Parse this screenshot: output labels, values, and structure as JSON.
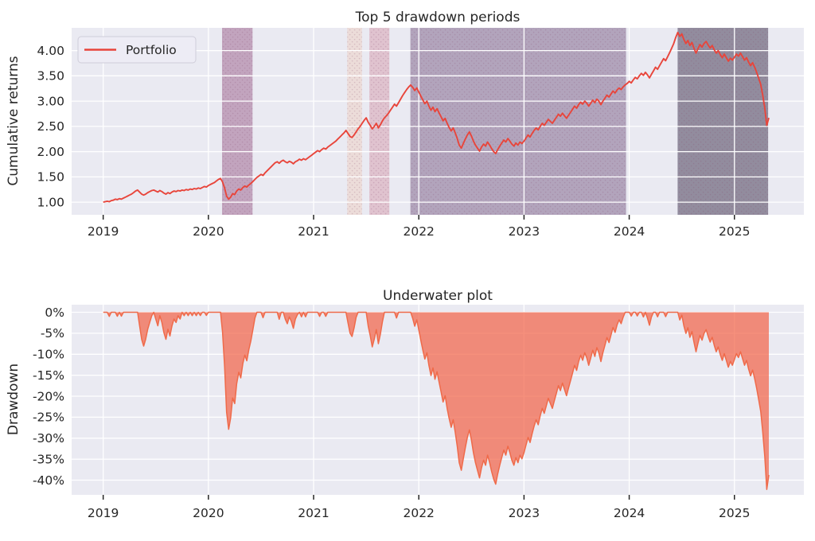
{
  "style": {
    "figure_bg": "#ffffff",
    "axes_bg": "#eaeaf2",
    "grid_color": "#ffffff",
    "text_color": "#262626",
    "tick_mark_color": "#262626",
    "legend_bg": "#edecf5",
    "legend_border": "#cfcdd9"
  },
  "chart_data": [
    {
      "type": "line",
      "title": "Top 5 drawdown periods",
      "ylabel": "Cumulative returns",
      "legend_position": "upper left",
      "grid": true,
      "xlim": [
        2018.7,
        2025.66
      ],
      "ylim": [
        0.75,
        4.45
      ],
      "x_ticks": [
        2019,
        2020,
        2021,
        2022,
        2023,
        2024,
        2025
      ],
      "x_tick_labels": [
        "2019",
        "2020",
        "2021",
        "2022",
        "2023",
        "2024",
        "2025"
      ],
      "y_ticks": [
        1.0,
        1.5,
        2.0,
        2.5,
        3.0,
        3.5,
        4.0
      ],
      "y_tick_labels": [
        "1.00",
        "1.50",
        "2.00",
        "2.50",
        "3.00",
        "3.50",
        "4.00"
      ],
      "series": [
        {
          "name": "Portfolio",
          "color": "#e8453b",
          "x_start": 2019.0,
          "x_step": 0.0192308,
          "values": [
            1.0,
            1.01,
            1.02,
            1.01,
            1.03,
            1.04,
            1.06,
            1.05,
            1.07,
            1.06,
            1.08,
            1.1,
            1.12,
            1.14,
            1.16,
            1.19,
            1.22,
            1.24,
            1.2,
            1.16,
            1.14,
            1.16,
            1.19,
            1.21,
            1.23,
            1.24,
            1.22,
            1.2,
            1.23,
            1.21,
            1.18,
            1.16,
            1.19,
            1.17,
            1.2,
            1.22,
            1.21,
            1.23,
            1.22,
            1.24,
            1.23,
            1.25,
            1.24,
            1.26,
            1.25,
            1.27,
            1.26,
            1.28,
            1.27,
            1.29,
            1.31,
            1.3,
            1.33,
            1.35,
            1.37,
            1.39,
            1.42,
            1.45,
            1.47,
            1.4,
            1.28,
            1.12,
            1.06,
            1.1,
            1.17,
            1.15,
            1.22,
            1.26,
            1.24,
            1.29,
            1.32,
            1.3,
            1.34,
            1.37,
            1.41,
            1.45,
            1.49,
            1.52,
            1.55,
            1.53,
            1.58,
            1.62,
            1.66,
            1.7,
            1.74,
            1.78,
            1.8,
            1.77,
            1.81,
            1.83,
            1.8,
            1.78,
            1.81,
            1.79,
            1.76,
            1.8,
            1.82,
            1.85,
            1.83,
            1.86,
            1.84,
            1.87,
            1.9,
            1.93,
            1.96,
            1.99,
            2.02,
            2.0,
            2.04,
            2.07,
            2.05,
            2.09,
            2.12,
            2.15,
            2.18,
            2.21,
            2.25,
            2.29,
            2.33,
            2.37,
            2.42,
            2.36,
            2.3,
            2.28,
            2.33,
            2.39,
            2.45,
            2.5,
            2.56,
            2.62,
            2.67,
            2.58,
            2.52,
            2.45,
            2.5,
            2.56,
            2.47,
            2.53,
            2.61,
            2.67,
            2.71,
            2.76,
            2.82,
            2.88,
            2.94,
            2.9,
            2.97,
            3.04,
            3.11,
            3.17,
            3.23,
            3.28,
            3.32,
            3.27,
            3.21,
            3.26,
            3.18,
            3.1,
            3.02,
            2.95,
            3.0,
            2.9,
            2.82,
            2.88,
            2.79,
            2.85,
            2.77,
            2.69,
            2.61,
            2.66,
            2.56,
            2.48,
            2.41,
            2.47,
            2.37,
            2.26,
            2.13,
            2.07,
            2.16,
            2.25,
            2.33,
            2.39,
            2.31,
            2.21,
            2.13,
            2.07,
            2.01,
            2.09,
            2.15,
            2.11,
            2.19,
            2.13,
            2.06,
            2.0,
            1.96,
            2.04,
            2.11,
            2.17,
            2.23,
            2.19,
            2.26,
            2.21,
            2.15,
            2.11,
            2.17,
            2.13,
            2.19,
            2.16,
            2.21,
            2.27,
            2.33,
            2.29,
            2.36,
            2.42,
            2.47,
            2.43,
            2.5,
            2.56,
            2.52,
            2.58,
            2.64,
            2.6,
            2.56,
            2.62,
            2.68,
            2.74,
            2.7,
            2.76,
            2.71,
            2.66,
            2.72,
            2.78,
            2.84,
            2.9,
            2.86,
            2.93,
            2.98,
            2.94,
            3.0,
            2.96,
            2.9,
            2.96,
            3.02,
            2.97,
            3.04,
            3.0,
            2.93,
            3.0,
            3.06,
            3.12,
            3.08,
            3.14,
            3.2,
            3.16,
            3.22,
            3.26,
            3.23,
            3.28,
            3.32,
            3.35,
            3.39,
            3.36,
            3.42,
            3.47,
            3.44,
            3.5,
            3.55,
            3.51,
            3.57,
            3.52,
            3.46,
            3.53,
            3.6,
            3.67,
            3.63,
            3.7,
            3.77,
            3.84,
            3.8,
            3.88,
            3.96,
            4.05,
            4.14,
            4.26,
            4.36,
            4.28,
            4.33,
            4.22,
            4.14,
            4.2,
            4.1,
            4.16,
            4.05,
            3.95,
            4.04,
            4.12,
            4.07,
            4.14,
            4.18,
            4.11,
            4.05,
            4.1,
            4.02,
            3.95,
            4.0,
            3.92,
            3.86,
            3.93,
            3.86,
            3.79,
            3.85,
            3.81,
            3.87,
            3.93,
            3.89,
            3.95,
            3.88,
            3.81,
            3.86,
            3.77,
            3.7,
            3.76,
            3.67,
            3.57,
            3.45,
            3.33,
            3.12,
            2.86,
            2.52,
            2.67
          ]
        }
      ],
      "highlight_regions": [
        {
          "start": 2020.13,
          "end": 2020.42,
          "color": "#c2a4be"
        },
        {
          "start": 2021.32,
          "end": 2021.46,
          "color": "#ecdcd9"
        },
        {
          "start": 2021.53,
          "end": 2021.72,
          "color": "#e0c3cf"
        },
        {
          "start": 2021.92,
          "end": 2023.97,
          "color": "#b2a4bc"
        },
        {
          "start": 2024.46,
          "end": 2025.32,
          "color": "#928c9e"
        }
      ]
    },
    {
      "type": "area",
      "title": "Underwater plot",
      "ylabel": "Drawdown",
      "grid": true,
      "derived": "drawdown_pct_from_running_max_of_portfolio_series",
      "fill_color": "#f26549",
      "fill_opacity": 0.72,
      "edge_color": "#ef6a4a",
      "xlim": [
        2018.7,
        2025.66
      ],
      "ylim": [
        1.8,
        -43.5
      ],
      "x_ticks": [
        2019,
        2020,
        2021,
        2022,
        2023,
        2024,
        2025
      ],
      "x_tick_labels": [
        "2019",
        "2020",
        "2021",
        "2022",
        "2023",
        "2024",
        "2025"
      ],
      "y_ticks": [
        0,
        -5,
        -10,
        -15,
        -20,
        -25,
        -30,
        -35,
        -40
      ],
      "y_tick_labels": [
        "0%",
        "-5%",
        "-10%",
        "-15%",
        "-20%",
        "-25%",
        "-30%",
        "-35%",
        "-40%"
      ]
    }
  ]
}
